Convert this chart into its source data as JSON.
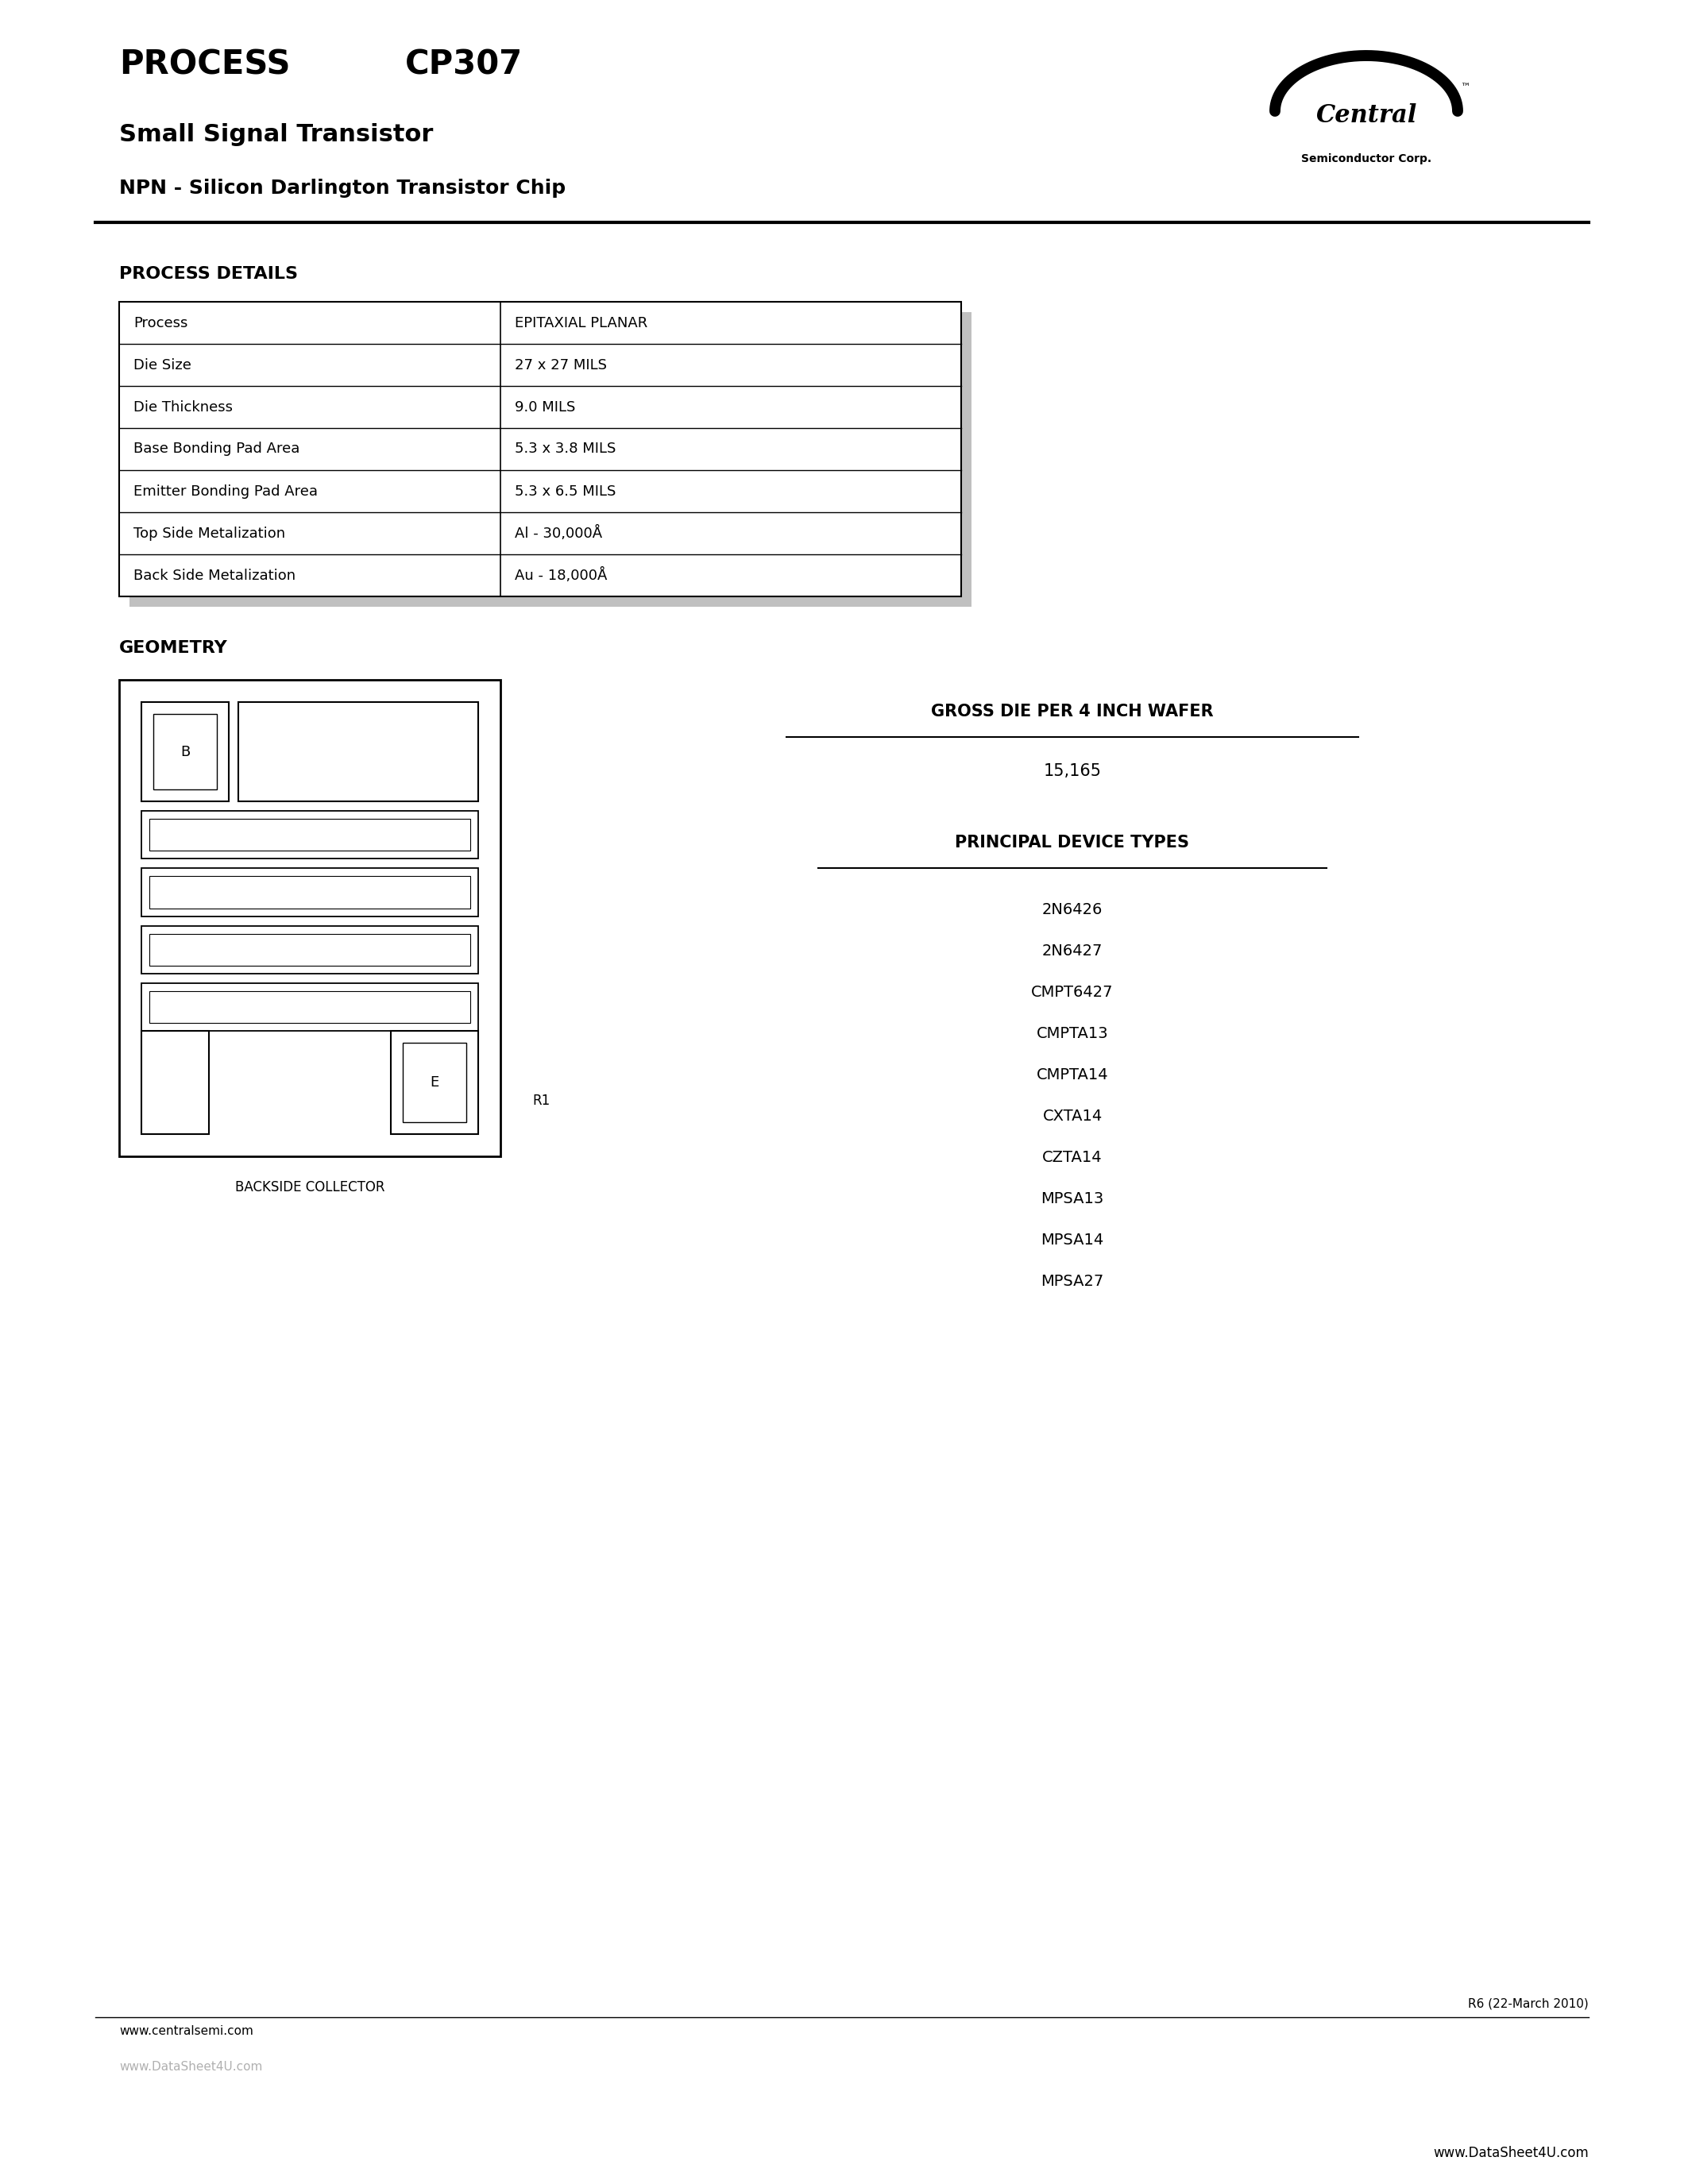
{
  "title_process": "PROCESS",
  "title_cp307": "CP307",
  "subtitle1": "Small Signal Transistor",
  "subtitle2": "NPN - Silicon Darlington Transistor Chip",
  "section_process_details": "PROCESS DETAILS",
  "table_rows": [
    [
      "Process",
      "EPITAXIAL PLANAR"
    ],
    [
      "Die Size",
      "27 x 27 MILS"
    ],
    [
      "Die Thickness",
      "9.0 MILS"
    ],
    [
      "Base Bonding Pad Area",
      "5.3 x 3.8 MILS"
    ],
    [
      "Emitter Bonding Pad Area",
      "5.3 x 6.5 MILS"
    ],
    [
      "Top Side Metalization",
      "Al - 30,000Å"
    ],
    [
      "Back Side Metalization",
      "Au - 18,000Å"
    ]
  ],
  "section_geometry": "GEOMETRY",
  "backside_collector": "BACKSIDE COLLECTOR",
  "gross_die_label": "GROSS DIE PER 4 INCH WAFER",
  "gross_die_value": "15,165",
  "principal_device_label": "PRINCIPAL DEVICE TYPES",
  "device_types": [
    "2N6426",
    "2N6427",
    "CMPT6427",
    "CMPTA13",
    "CMPTA14",
    "CXTA14",
    "CZTA14",
    "MPSA13",
    "MPSA14",
    "MPSA27"
  ],
  "r1_label": "R1",
  "revision": "R6 (22-March 2010)",
  "website": "www.centralsemi.com",
  "watermark": "www.DataSheet4U.com",
  "footer_website": "www.DataSheet4U.com",
  "bg_color": "#ffffff",
  "text_color": "#000000"
}
